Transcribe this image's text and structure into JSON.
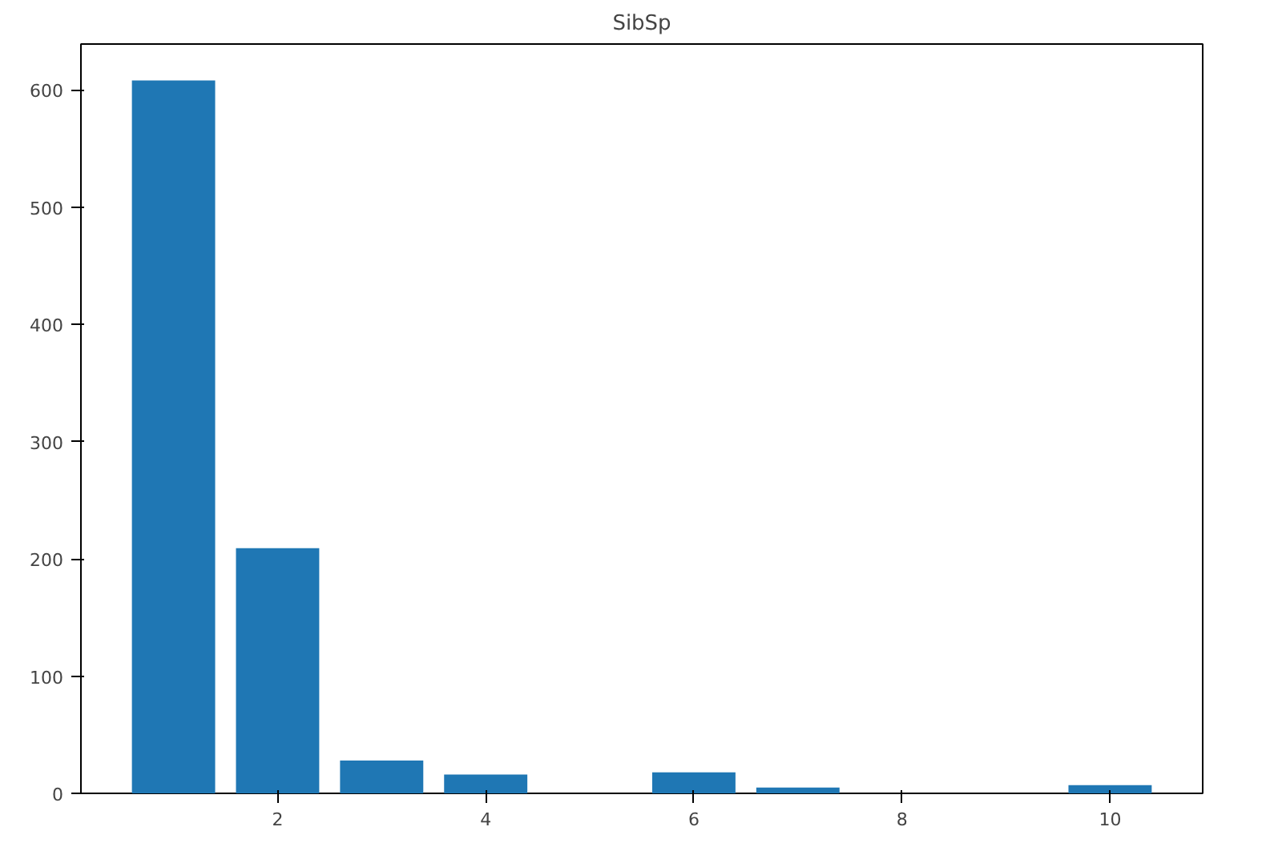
{
  "chart_data": {
    "type": "bar",
    "title": "SibSp",
    "x": [
      1,
      2,
      3,
      4,
      6,
      7,
      10
    ],
    "values": [
      608,
      209,
      28,
      16,
      18,
      5,
      7
    ],
    "color": "#1f77b4",
    "xlim": [
      0.11,
      10.89
    ],
    "ylim": [
      0,
      639
    ],
    "xticks": [
      2,
      4,
      6,
      8,
      10
    ],
    "yticks": [
      0,
      100,
      200,
      300,
      400,
      500,
      600
    ],
    "grid": false
  }
}
